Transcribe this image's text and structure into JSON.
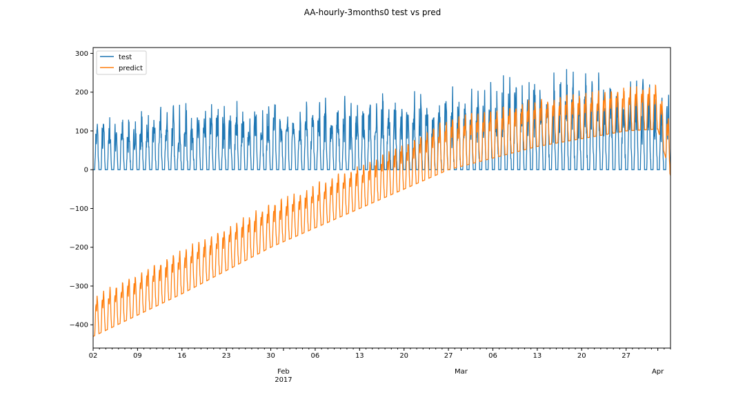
{
  "chart_data": {
    "type": "line",
    "title": "AA-hourly-3months0 test vs pred",
    "xlabel": "",
    "ylabel": "",
    "x_range": [
      "2017-01-02",
      "2017-04-03"
    ],
    "ylim": [
      -460,
      315
    ],
    "y_ticks": [
      300,
      200,
      100,
      0,
      -100,
      -200,
      -300,
      -400
    ],
    "x_ticks": [
      {
        "date": "2017-01-02",
        "label": "02",
        "sub": ""
      },
      {
        "date": "2017-01-09",
        "label": "09",
        "sub": ""
      },
      {
        "date": "2017-01-16",
        "label": "16",
        "sub": ""
      },
      {
        "date": "2017-01-23",
        "label": "23",
        "sub": ""
      },
      {
        "date": "2017-01-30",
        "label": "30",
        "sub": ""
      },
      {
        "date": "2017-02-01",
        "label": "Feb",
        "sub": "2017"
      },
      {
        "date": "2017-02-06",
        "label": "06",
        "sub": ""
      },
      {
        "date": "2017-02-13",
        "label": "13",
        "sub": ""
      },
      {
        "date": "2017-02-20",
        "label": "20",
        "sub": ""
      },
      {
        "date": "2017-02-27",
        "label": "27",
        "sub": ""
      },
      {
        "date": "2017-03-01",
        "label": "Mar",
        "sub": ""
      },
      {
        "date": "2017-03-06",
        "label": "06",
        "sub": ""
      },
      {
        "date": "2017-03-13",
        "label": "13",
        "sub": ""
      },
      {
        "date": "2017-03-20",
        "label": "20",
        "sub": ""
      },
      {
        "date": "2017-03-27",
        "label": "27",
        "sub": ""
      },
      {
        "date": "2017-04-01",
        "label": "Apr",
        "sub": ""
      }
    ],
    "legend_placement": "upper-left",
    "grid": false,
    "series": [
      {
        "name": "test",
        "color": "#1f77b4",
        "description_hourly": "daily spikes 0 to ~100-280, mostly 0 overnight",
        "x": [
          "2017-01-02",
          "2017-01-16",
          "2017-01-30",
          "2017-02-13",
          "2017-02-27",
          "2017-03-13",
          "2017-03-27",
          "2017-04-03"
        ],
        "daily_peak": [
          120,
          150,
          160,
          170,
          180,
          230,
          220,
          200
        ],
        "daily_min": [
          0,
          0,
          0,
          0,
          0,
          0,
          0,
          0
        ]
      },
      {
        "name": "predict",
        "color": "#ff7f0e",
        "x": [
          "2017-01-02",
          "2017-01-16",
          "2017-01-30",
          "2017-02-13",
          "2017-02-27",
          "2017-03-13",
          "2017-03-27",
          "2017-04-01",
          "2017-04-03"
        ],
        "daily_peak": [
          -320,
          -200,
          -80,
          20,
          140,
          190,
          220,
          230,
          120
        ],
        "daily_min": [
          -430,
          -320,
          -200,
          -100,
          0,
          60,
          100,
          105,
          -15
        ]
      }
    ]
  }
}
